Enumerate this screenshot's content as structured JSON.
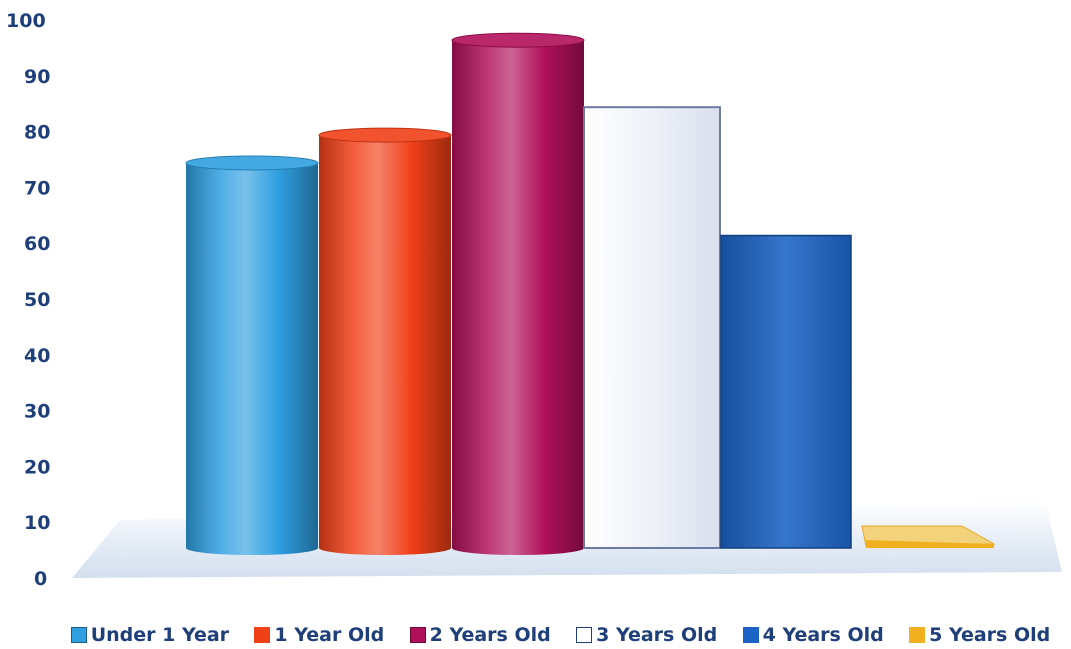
{
  "chart_data": {
    "type": "bar",
    "title": "",
    "xlabel": "",
    "ylabel": "",
    "ylim": [
      0,
      100
    ],
    "yticks": [
      0,
      10,
      20,
      30,
      40,
      50,
      60,
      70,
      80,
      90,
      100
    ],
    "grid": false,
    "legend_position": "bottom",
    "style": "3d-columns",
    "series": [
      {
        "name": "Under 1 Year",
        "value": 69,
        "shape": "cylinder",
        "color": "#2f9fe0"
      },
      {
        "name": "1 Year Old",
        "value": 74,
        "shape": "cylinder",
        "color": "#f04018"
      },
      {
        "name": "2 Years Old",
        "value": 91,
        "shape": "cylinder",
        "color": "#b0105a"
      },
      {
        "name": "3  Years Old",
        "value": 79,
        "shape": "box",
        "color": "#eef1f8"
      },
      {
        "name": "4 Years Old",
        "value": 56,
        "shape": "box",
        "color": "#1b63c4"
      },
      {
        "name": "5 Years Old",
        "value": 1,
        "shape": "box",
        "color": "#f0b020"
      }
    ]
  }
}
